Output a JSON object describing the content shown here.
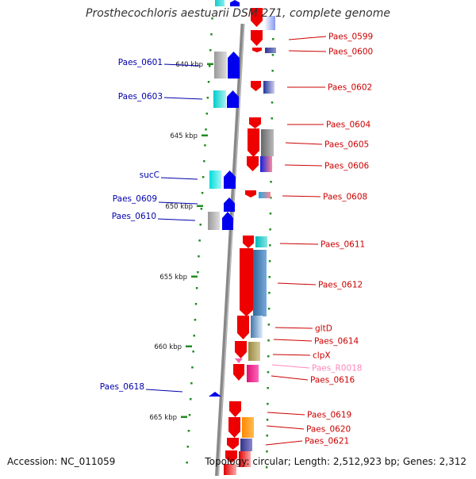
{
  "title": "Prosthecochloris aestuarii DSM 271, complete genome",
  "footer": {
    "accession": "Accession: NC_011059",
    "summary": "Topology: circular; Length: 2,512,923 bp; Genes: 2,312"
  },
  "colors": {
    "backbone": "#808080",
    "forward_label": "#0000aa",
    "reverse_label": "#cc0000",
    "rna_label": "#ff88bb",
    "tick": "#228b22",
    "forward_arrow": "#0000ee",
    "reverse_arrow": "#ee0000"
  },
  "ruler": {
    "unit": "kbp",
    "ticks": [
      {
        "label": "640 kbp"
      },
      {
        "label": "645 kbp"
      },
      {
        "label": "650 kbp"
      },
      {
        "label": "655 kbp"
      },
      {
        "label": "660 kbp"
      },
      {
        "label": "665 kbp"
      }
    ]
  },
  "left_labels": [
    {
      "text": "Paes_0601"
    },
    {
      "text": "Paes_0603"
    },
    {
      "text": "sucC"
    },
    {
      "text": "Paes_0609"
    },
    {
      "text": "Paes_0610"
    },
    {
      "text": "Paes_0618"
    }
  ],
  "right_labels": [
    {
      "text": "Paes_0599"
    },
    {
      "text": "Paes_0600"
    },
    {
      "text": "Paes_0602"
    },
    {
      "text": "Paes_0604"
    },
    {
      "text": "Paes_0605"
    },
    {
      "text": "Paes_0606"
    },
    {
      "text": "Paes_0608"
    },
    {
      "text": "Paes_0611"
    },
    {
      "text": "Paes_0612"
    },
    {
      "text": "gltD"
    },
    {
      "text": "Paes_0614"
    },
    {
      "text": "clpX"
    },
    {
      "text": "Paes_R0018",
      "rna": true
    },
    {
      "text": "Paes_0616"
    },
    {
      "text": "Paes_0619"
    },
    {
      "text": "Paes_0620"
    },
    {
      "text": "Paes_0621"
    }
  ]
}
